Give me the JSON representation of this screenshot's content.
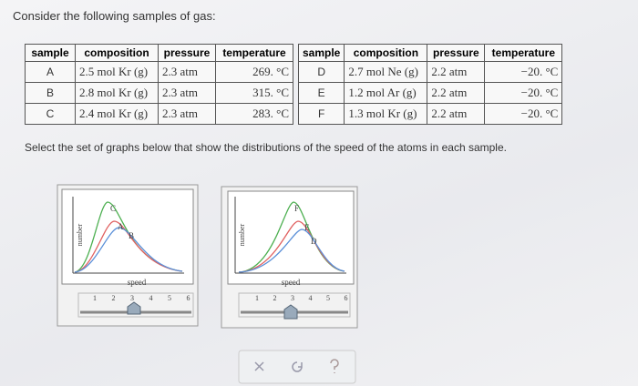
{
  "prompt": "Consider the following samples of gas:",
  "tables": [
    {
      "header": [
        "sample",
        "composition",
        "pressure",
        "temperature"
      ],
      "rows": [
        [
          "A",
          "2.5 mol Kr (g)",
          "2.3 atm",
          "269. °C"
        ],
        [
          "B",
          "2.8 mol Kr (g)",
          "2.3 atm",
          "315. °C"
        ],
        [
          "C",
          "2.4 mol Kr (g)",
          "2.3 atm",
          "283. °C"
        ]
      ]
    },
    {
      "header": [
        "sample",
        "composition",
        "pressure",
        "temperature"
      ],
      "rows": [
        [
          "D",
          "2.7 mol Ne (g)",
          "2.2 atm",
          "−20. °C"
        ],
        [
          "E",
          "1.2 mol Ar (g)",
          "2.2 atm",
          "−20. °C"
        ],
        [
          "F",
          "1.3 mol Kr (g)",
          "2.2 atm",
          "−20. °C"
        ]
      ]
    }
  ],
  "instruction": "Select the set of graphs below that show the distributions of the speed of the atoms in each sample.",
  "graphs": [
    {
      "y_label": "number",
      "x_label": "speed",
      "curve_labels": [
        "C",
        "A",
        "B"
      ],
      "slider_ticks": [
        "1",
        "2",
        "3",
        "4",
        "5",
        "6"
      ]
    },
    {
      "y_label": "number",
      "x_label": "speed",
      "curve_labels": [
        "F",
        "E",
        "D"
      ],
      "slider_ticks": [
        "1",
        "2",
        "3",
        "4",
        "5",
        "6"
      ]
    }
  ]
}
